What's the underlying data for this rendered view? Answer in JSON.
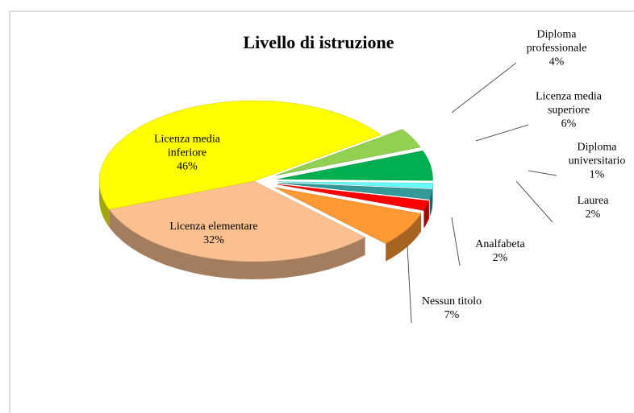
{
  "chart_data": {
    "type": "pie",
    "title": "Livello di istruzione",
    "categories": [
      "Diploma professionale",
      "Licenza media superiore",
      "Diploma universitario",
      "Laurea",
      "Analfabeta",
      "Nessun titolo",
      "Licenza elementare",
      "Licenza media inferiore"
    ],
    "values": [
      4,
      6,
      1,
      2,
      2,
      7,
      32,
      46
    ],
    "value_labels": [
      "4%",
      "6%",
      "1%",
      "2%",
      "2%",
      "7%",
      "32%",
      "46%"
    ],
    "colors": [
      "#92d050",
      "#00b050",
      "#66ffff",
      "#339999",
      "#ff0000",
      "#ff9933",
      "#fac090",
      "#ffff00"
    ]
  }
}
